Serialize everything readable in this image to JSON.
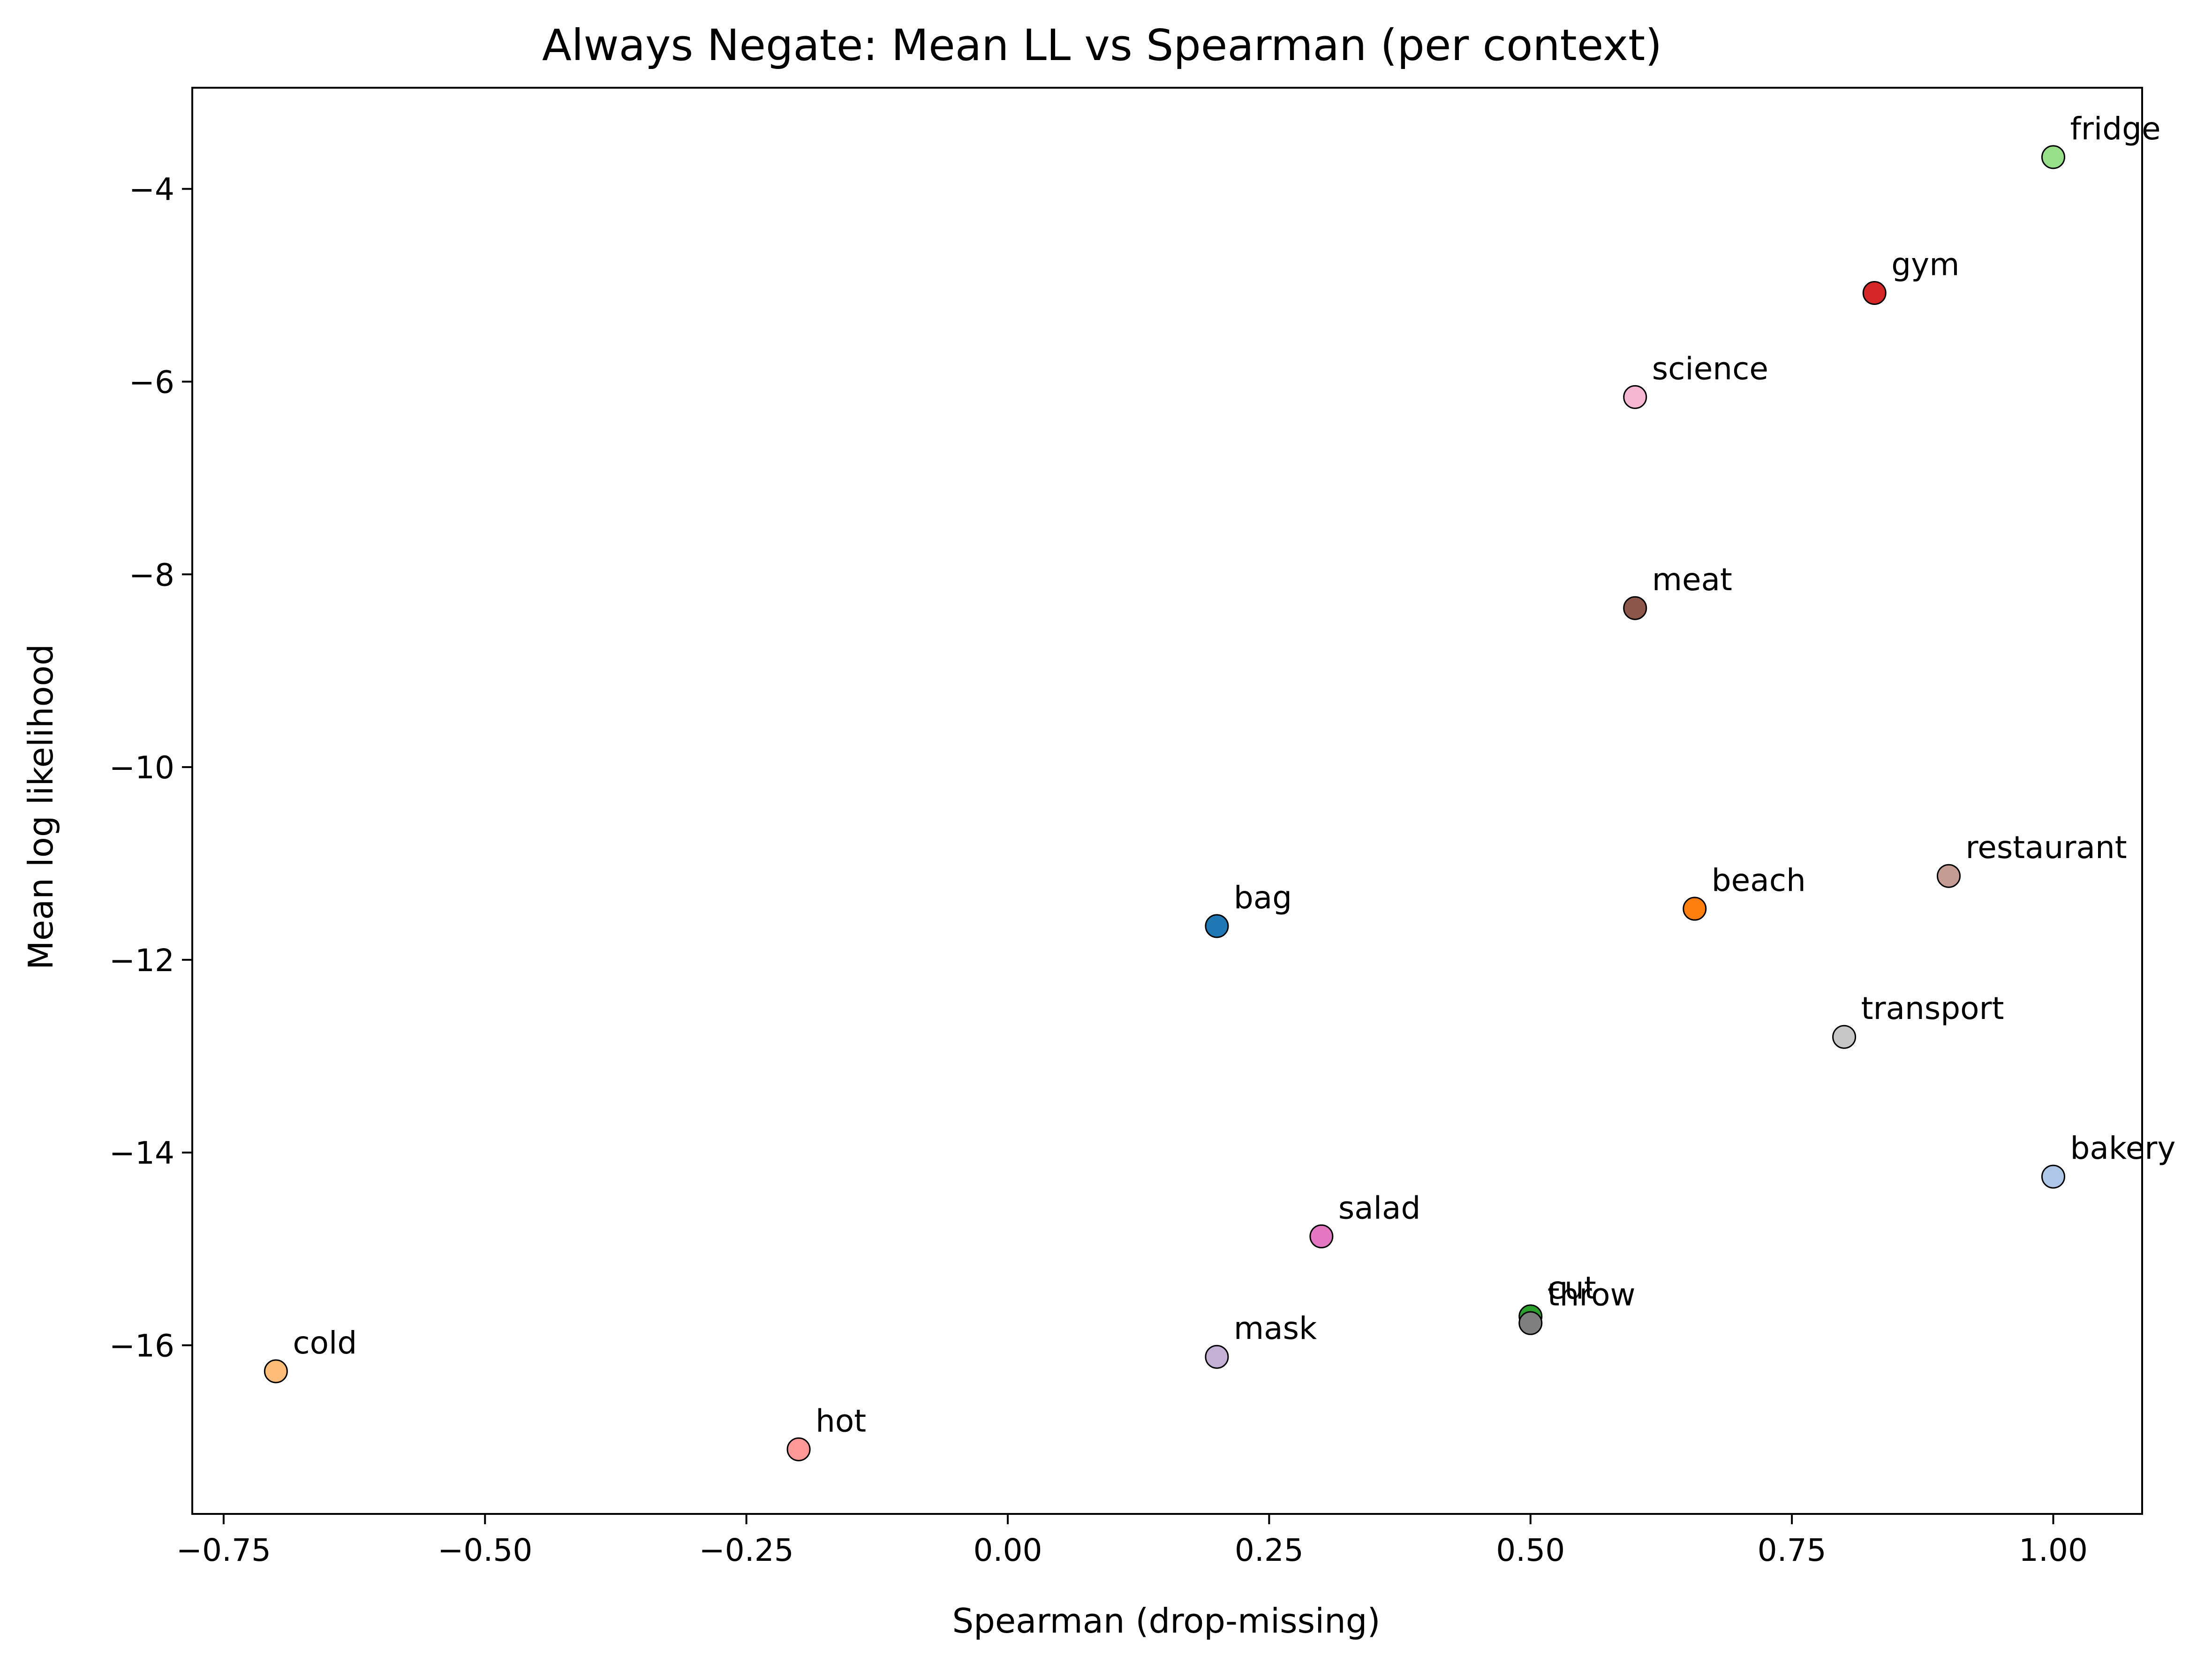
{
  "chart_data": {
    "type": "scatter",
    "title": "Always Negate: Mean LL vs Spearman (per context)",
    "xlabel": "Spearman (drop-missing)",
    "ylabel": "Mean log likelihood",
    "xlim": [
      -0.78,
      1.085
    ],
    "ylim": [
      -17.75,
      -2.95
    ],
    "xticks": [
      -0.75,
      -0.5,
      -0.25,
      0.0,
      0.25,
      0.5,
      0.75,
      1.0
    ],
    "xtick_labels": [
      "−0.75",
      "−0.50",
      "−0.25",
      "0.00",
      "0.25",
      "0.50",
      "0.75",
      "1.00"
    ],
    "yticks": [
      -4,
      -6,
      -8,
      -10,
      -12,
      -14,
      -16
    ],
    "ytick_labels": [
      "−4",
      "−6",
      "−8",
      "−10",
      "−12",
      "−14",
      "−16"
    ],
    "grid": false,
    "legend": "none",
    "points": [
      {
        "label": "bag",
        "x": 0.2,
        "y": -11.65,
        "color": "#1f77b4"
      },
      {
        "label": "beach",
        "x": 0.657,
        "y": -11.47,
        "color": "#ff7f0e"
      },
      {
        "label": "cold",
        "x": -0.7,
        "y": -16.27,
        "color": "#ffbb78"
      },
      {
        "label": "cut",
        "x": 0.5,
        "y": -15.7,
        "color": "#2ca02c"
      },
      {
        "label": "fridge",
        "x": 1.0,
        "y": -3.67,
        "color": "#98df8a"
      },
      {
        "label": "gym",
        "x": 0.829,
        "y": -5.08,
        "color": "#d62728"
      },
      {
        "label": "hot",
        "x": -0.2,
        "y": -17.08,
        "color": "#ff9896"
      },
      {
        "label": "mask",
        "x": 0.2,
        "y": -16.12,
        "color": "#c5b0d5"
      },
      {
        "label": "meat",
        "x": 0.6,
        "y": -8.35,
        "color": "#8c564b"
      },
      {
        "label": "restaurant",
        "x": 0.9,
        "y": -11.13,
        "color": "#c49c94"
      },
      {
        "label": "salad",
        "x": 0.3,
        "y": -14.87,
        "color": "#e377c2"
      },
      {
        "label": "science",
        "x": 0.6,
        "y": -6.16,
        "color": "#f7b6d2"
      },
      {
        "label": "throw",
        "x": 0.5,
        "y": -15.77,
        "color": "#7f7f7f"
      },
      {
        "label": "transport",
        "x": 0.8,
        "y": -12.8,
        "color": "#c7c7c7"
      },
      {
        "label": "bakery",
        "x": 1.0,
        "y": -14.25,
        "color": "#aec7e8"
      }
    ]
  }
}
